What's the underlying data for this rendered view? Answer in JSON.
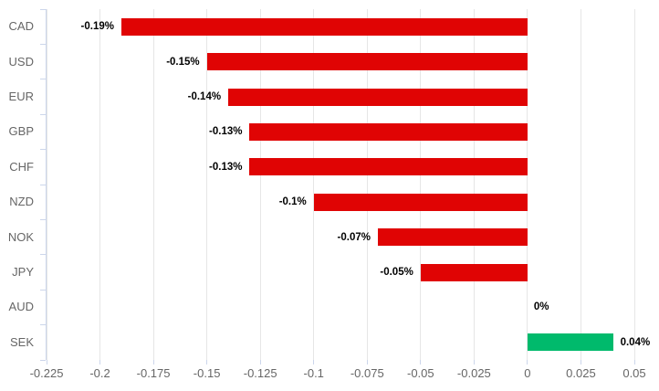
{
  "chart_data": {
    "type": "bar",
    "orientation": "horizontal",
    "title": "",
    "xlabel": "",
    "ylabel": "",
    "categories": [
      "CAD",
      "USD",
      "EUR",
      "GBP",
      "CHF",
      "NZD",
      "NOK",
      "JPY",
      "AUD",
      "SEK"
    ],
    "values": [
      -0.19,
      -0.15,
      -0.14,
      -0.13,
      -0.13,
      -0.1,
      -0.07,
      -0.05,
      0,
      0.04
    ],
    "data_labels": [
      "-0.19%",
      "-0.15%",
      "-0.14%",
      "-0.13%",
      "-0.13%",
      "-0.1%",
      "-0.07%",
      "-0.05%",
      "0%",
      "0.04%"
    ],
    "xlim": [
      -0.225,
      0.05
    ],
    "x_ticks": [
      -0.225,
      -0.2,
      -0.175,
      -0.15,
      -0.125,
      -0.1,
      -0.075,
      -0.05,
      -0.025,
      0,
      0.025,
      0.05
    ],
    "x_tick_labels": [
      "-0.225",
      "-0.2",
      "-0.175",
      "-0.15",
      "-0.125",
      "-0.1",
      "-0.075",
      "-0.05",
      "-0.025",
      "0",
      "0.025",
      "0.05"
    ],
    "grid": true,
    "legend": false,
    "colors": {
      "negative_bar": "#e00404",
      "positive_bar": "#00ba6c",
      "gridline": "#e6e6e6",
      "axis_line": "#ccd6eb",
      "axis_label": "#666666",
      "data_label": "#000000"
    }
  }
}
